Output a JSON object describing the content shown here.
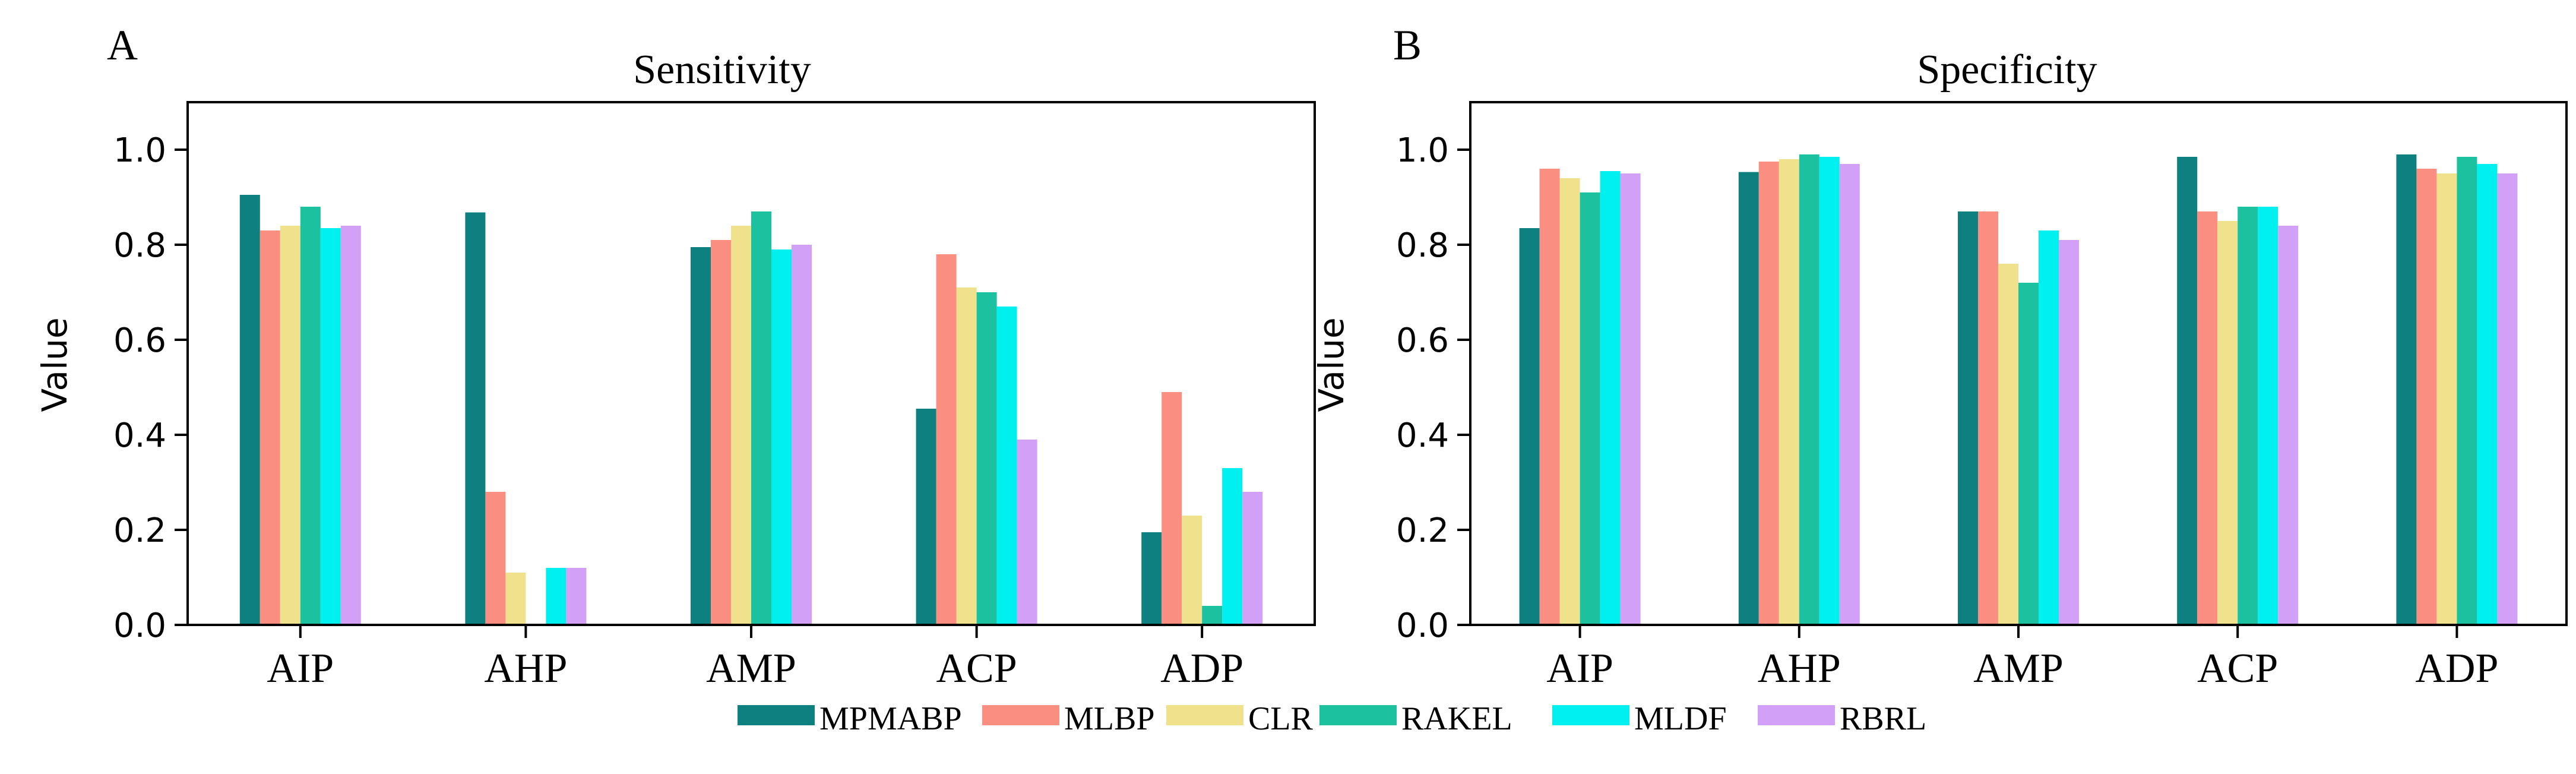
{
  "figure": {
    "legend": [
      {
        "name": "MPMABP",
        "color": "#0f8080"
      },
      {
        "name": "MLBP",
        "color": "#fa8e80"
      },
      {
        "name": "CLR",
        "color": "#f0e28d"
      },
      {
        "name": "RAKEL",
        "color": "#1cc1a0"
      },
      {
        "name": "MLDF",
        "color": "#00f0f0"
      },
      {
        "name": "RBRL",
        "color": "#d2a0f6"
      }
    ]
  },
  "chart_data": [
    {
      "type": "bar",
      "panel_label": "A",
      "title": "Sensitivity",
      "xlabel": "",
      "ylabel": "Value",
      "ylim": [
        0,
        1.1
      ],
      "yticks": [
        "0.0",
        "0.2",
        "0.4",
        "0.6",
        "0.8",
        "1.0"
      ],
      "categories": [
        "AIP",
        "AHP",
        "AMP",
        "ACP",
        "ADP"
      ],
      "series": [
        {
          "name": "MPMABP",
          "values": [
            0.905,
            0.868,
            0.795,
            0.455,
            0.195
          ]
        },
        {
          "name": "MLBP",
          "values": [
            0.83,
            0.28,
            0.81,
            0.78,
            0.49
          ]
        },
        {
          "name": "CLR",
          "values": [
            0.84,
            0.11,
            0.84,
            0.71,
            0.23
          ]
        },
        {
          "name": "RAKEL",
          "values": [
            0.88,
            0.0,
            0.87,
            0.7,
            0.04
          ]
        },
        {
          "name": "MLDF",
          "values": [
            0.835,
            0.12,
            0.79,
            0.67,
            0.33
          ]
        },
        {
          "name": "RBRL",
          "values": [
            0.84,
            0.12,
            0.8,
            0.39,
            0.28
          ]
        }
      ]
    },
    {
      "type": "bar",
      "panel_label": "B",
      "title": "Specificity",
      "xlabel": "",
      "ylabel": "Value",
      "ylim": [
        0,
        1.1
      ],
      "yticks": [
        "0.0",
        "0.2",
        "0.4",
        "0.6",
        "0.8",
        "1.0"
      ],
      "categories": [
        "AIP",
        "AHP",
        "AMP",
        "ACP",
        "ADP"
      ],
      "series": [
        {
          "name": "MPMABP",
          "values": [
            0.835,
            0.953,
            0.87,
            0.985,
            0.99
          ]
        },
        {
          "name": "MLBP",
          "values": [
            0.96,
            0.975,
            0.87,
            0.87,
            0.96
          ]
        },
        {
          "name": "CLR",
          "values": [
            0.94,
            0.98,
            0.76,
            0.85,
            0.95
          ]
        },
        {
          "name": "RAKEL",
          "values": [
            0.91,
            0.99,
            0.72,
            0.88,
            0.985
          ]
        },
        {
          "name": "MLDF",
          "values": [
            0.955,
            0.985,
            0.83,
            0.88,
            0.97
          ]
        },
        {
          "name": "RBRL",
          "values": [
            0.95,
            0.97,
            0.81,
            0.84,
            0.95
          ]
        }
      ]
    }
  ]
}
